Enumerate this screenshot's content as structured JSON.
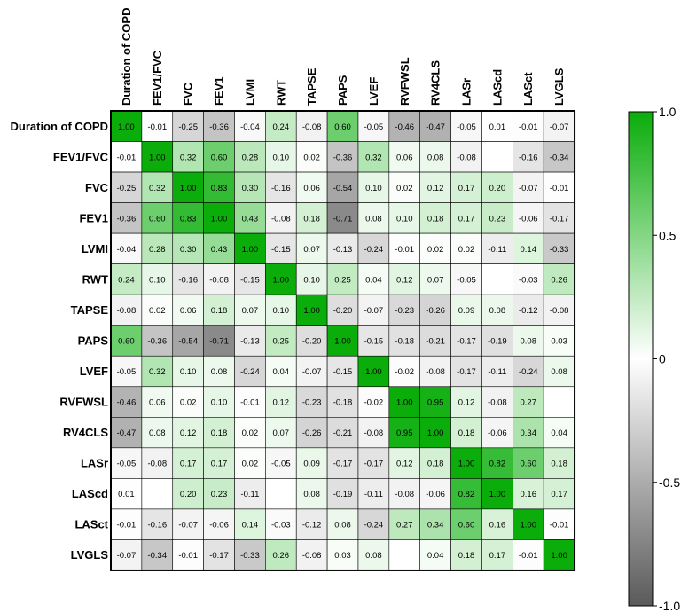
{
  "chart_data": {
    "type": "heatmap",
    "title": "",
    "labels": [
      "Duration of COPD",
      "FEV1/FVC",
      "FVC",
      "FEV1",
      "LVMI",
      "RWT",
      "TAPSE",
      "PAPS",
      "LVEF",
      "RVFWSL",
      "RV4CLS",
      "LASr",
      "LAScd",
      "LASct",
      "LVGLS"
    ],
    "matrix": [
      [
        1.0,
        -0.01,
        -0.25,
        -0.36,
        -0.04,
        0.24,
        -0.08,
        0.6,
        -0.05,
        -0.46,
        -0.47,
        -0.05,
        0.01,
        -0.01,
        -0.07
      ],
      [
        -0.01,
        1.0,
        0.32,
        0.6,
        0.28,
        0.1,
        0.02,
        -0.36,
        0.32,
        0.06,
        0.08,
        -0.08,
        null,
        -0.16,
        -0.34
      ],
      [
        -0.25,
        0.32,
        1.0,
        0.83,
        0.3,
        -0.16,
        0.06,
        -0.54,
        0.1,
        0.02,
        0.12,
        0.17,
        0.2,
        -0.07,
        -0.01
      ],
      [
        -0.36,
        0.6,
        0.83,
        1.0,
        0.43,
        -0.08,
        0.18,
        -0.71,
        0.08,
        0.1,
        0.18,
        0.17,
        0.23,
        -0.06,
        -0.17
      ],
      [
        -0.04,
        0.28,
        0.3,
        0.43,
        1.0,
        -0.15,
        0.07,
        -0.13,
        -0.24,
        -0.01,
        0.02,
        0.02,
        -0.11,
        0.14,
        -0.33
      ],
      [
        0.24,
        0.1,
        -0.16,
        -0.08,
        -0.15,
        1.0,
        0.1,
        0.25,
        0.04,
        0.12,
        0.07,
        -0.05,
        null,
        -0.03,
        0.26
      ],
      [
        -0.08,
        0.02,
        0.06,
        0.18,
        0.07,
        0.1,
        1.0,
        -0.2,
        -0.07,
        -0.23,
        -0.26,
        0.09,
        0.08,
        -0.12,
        -0.08
      ],
      [
        0.6,
        -0.36,
        -0.54,
        -0.71,
        -0.13,
        0.25,
        -0.2,
        1.0,
        -0.15,
        -0.18,
        -0.21,
        -0.17,
        -0.19,
        0.08,
        0.03
      ],
      [
        -0.05,
        0.32,
        0.1,
        0.08,
        -0.24,
        0.04,
        -0.07,
        -0.15,
        1.0,
        -0.02,
        -0.08,
        -0.17,
        -0.11,
        -0.24,
        0.08
      ],
      [
        -0.46,
        0.06,
        0.02,
        0.1,
        -0.01,
        0.12,
        -0.23,
        -0.18,
        -0.02,
        1.0,
        0.95,
        0.12,
        -0.08,
        0.27,
        null
      ],
      [
        -0.47,
        0.08,
        0.12,
        0.18,
        0.02,
        0.07,
        -0.26,
        -0.21,
        -0.08,
        0.95,
        1.0,
        0.18,
        -0.06,
        0.34,
        0.04
      ],
      [
        -0.05,
        -0.08,
        0.17,
        0.17,
        0.02,
        -0.05,
        0.09,
        -0.17,
        -0.17,
        0.12,
        0.18,
        1.0,
        0.82,
        0.6,
        0.18
      ],
      [
        0.01,
        null,
        0.2,
        0.23,
        -0.11,
        null,
        0.08,
        -0.19,
        -0.11,
        -0.08,
        -0.06,
        0.82,
        1.0,
        0.16,
        0.17
      ],
      [
        -0.01,
        -0.16,
        -0.07,
        -0.06,
        0.14,
        -0.03,
        -0.12,
        0.08,
        -0.24,
        0.27,
        0.34,
        0.6,
        0.16,
        1.0,
        -0.01
      ],
      [
        -0.07,
        -0.34,
        -0.01,
        -0.17,
        -0.33,
        0.26,
        -0.08,
        0.03,
        0.08,
        null,
        0.04,
        0.18,
        0.17,
        -0.01,
        1.0
      ]
    ],
    "colorbar": {
      "range": [
        -1.0,
        1.0
      ],
      "ticks": [
        1.0,
        0.5,
        0,
        -0.5,
        -1.0
      ],
      "tick_labels": [
        "1.0",
        "0.5",
        "0",
        "-0.5",
        "-1.0"
      ],
      "colors": {
        "positive": "#0aad0a",
        "zero": "#ffffff",
        "negative": "#5a5a5a"
      }
    },
    "grid": true,
    "legend": "right"
  }
}
